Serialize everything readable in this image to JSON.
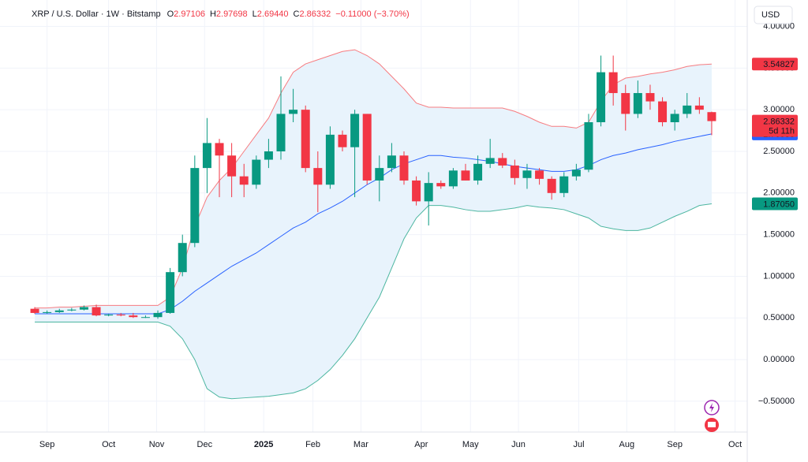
{
  "chart_data": {
    "type": "candlestick",
    "header": {
      "symbol": "XRP / U.S. Dollar · 1W · Bitstamp",
      "ohlc": [
        {
          "key": "O",
          "value": "2.97106"
        },
        {
          "key": "H",
          "value": "2.97698"
        },
        {
          "key": "L",
          "value": "2.69440"
        },
        {
          "key": "C",
          "value": "2.86332"
        }
      ],
      "change": "−0.11000 (−3.70%)"
    },
    "currency": "USD",
    "countdown": "5d 11h",
    "up_color": "#089981",
    "down_color": "#f23645",
    "band_fill": "#e8f3fc",
    "grid": true,
    "ylim": [
      -0.87,
      4.27
    ],
    "yticks": [
      {
        "value": -0.5,
        "label": "−0.50000"
      },
      {
        "value": 0,
        "label": "0.00000"
      },
      {
        "value": 0.5,
        "label": "0.50000"
      },
      {
        "value": 1,
        "label": "1.00000"
      },
      {
        "value": 1.5,
        "label": "1.50000"
      },
      {
        "value": 2,
        "label": "2.00000"
      },
      {
        "value": 2.5,
        "label": "2.50000"
      },
      {
        "value": 3,
        "label": "3.00000"
      },
      {
        "value": 3.5,
        "label": "3.50000"
      },
      {
        "value": 4,
        "label": "4.00000"
      }
    ],
    "xlim": [
      -0.58,
      57.76
    ],
    "xticks": [
      {
        "value": 1,
        "label": "Sep"
      },
      {
        "value": 6,
        "label": "Oct"
      },
      {
        "value": 9.9,
        "label": "Nov"
      },
      {
        "value": 13.8,
        "label": "Dec"
      },
      {
        "value": 18.6,
        "label": "2025"
      },
      {
        "value": 22.6,
        "label": "Feb"
      },
      {
        "value": 26.5,
        "label": "Mar"
      },
      {
        "value": 31.4,
        "label": "Apr"
      },
      {
        "value": 35.4,
        "label": "May"
      },
      {
        "value": 39.3,
        "label": "Jun"
      },
      {
        "value": 44.2,
        "label": "Jul"
      },
      {
        "value": 48.1,
        "label": "Aug"
      },
      {
        "value": 52,
        "label": "Sep"
      },
      {
        "value": 56.9,
        "label": "Oct"
      }
    ],
    "candles": {
      "open": [
        0.61,
        0.56,
        0.57,
        0.59,
        0.6,
        0.63,
        0.53,
        0.54,
        0.53,
        0.51,
        0.51,
        0.56,
        1.05,
        1.4,
        2.3,
        2.6,
        2.45,
        2.2,
        2.1,
        2.4,
        2.5,
        2.95,
        3.0,
        2.3,
        2.1,
        2.7,
        2.55,
        2.95,
        2.15,
        2.3,
        2.45,
        2.15,
        1.9,
        2.12,
        2.08,
        2.27,
        2.15,
        2.35,
        2.42,
        2.33,
        2.18,
        2.27,
        2.17,
        2.0,
        2.2,
        2.28,
        2.85,
        3.45,
        3.2,
        2.95,
        3.2,
        3.1,
        2.85,
        2.95,
        3.05,
        2.97106
      ],
      "high": [
        0.63,
        0.59,
        0.61,
        0.62,
        0.65,
        0.66,
        0.55,
        0.56,
        0.56,
        0.53,
        0.59,
        1.1,
        1.5,
        2.45,
        2.9,
        2.65,
        2.6,
        2.35,
        2.45,
        2.65,
        3.4,
        3.25,
        3.05,
        2.5,
        2.8,
        2.75,
        3.0,
        2.95,
        2.45,
        2.6,
        2.5,
        2.2,
        2.25,
        2.15,
        2.3,
        2.35,
        2.45,
        2.65,
        2.48,
        2.4,
        2.35,
        2.3,
        2.2,
        2.25,
        2.35,
        2.95,
        3.65,
        3.65,
        3.3,
        3.35,
        3.3,
        3.15,
        3.0,
        3.2,
        3.15,
        2.97698
      ],
      "low": [
        0.55,
        0.55,
        0.56,
        0.58,
        0.59,
        0.52,
        0.52,
        0.52,
        0.5,
        0.5,
        0.49,
        0.55,
        1.0,
        1.35,
        2.0,
        1.95,
        1.95,
        1.95,
        2.05,
        2.3,
        2.4,
        2.85,
        2.25,
        1.77,
        2.05,
        2.5,
        1.95,
        2.1,
        1.9,
        2.25,
        2.1,
        1.85,
        1.61,
        2.05,
        2.05,
        2.15,
        2.1,
        2.3,
        2.3,
        2.1,
        2.05,
        2.1,
        1.92,
        1.95,
        2.15,
        2.25,
        2.8,
        3.05,
        2.75,
        2.9,
        3.0,
        2.8,
        2.75,
        2.9,
        2.95,
        2.6944
      ],
      "close": [
        0.56,
        0.57,
        0.59,
        0.6,
        0.63,
        0.53,
        0.54,
        0.53,
        0.51,
        0.51,
        0.56,
        1.05,
        1.4,
        2.3,
        2.6,
        2.45,
        2.2,
        2.1,
        2.4,
        2.5,
        2.95,
        3.0,
        2.3,
        2.1,
        2.7,
        2.55,
        2.95,
        2.15,
        2.3,
        2.45,
        2.15,
        1.9,
        2.12,
        2.08,
        2.27,
        2.15,
        2.35,
        2.42,
        2.33,
        2.18,
        2.27,
        2.17,
        2.0,
        2.2,
        2.28,
        2.85,
        3.45,
        3.2,
        2.95,
        3.2,
        3.1,
        2.85,
        2.95,
        3.05,
        3.0,
        2.86332
      ]
    },
    "bands": {
      "upper": {
        "color": "#f77c80",
        "label_color": "#f23645",
        "values": [
          0.62,
          0.62,
          0.63,
          0.63,
          0.64,
          0.65,
          0.65,
          0.65,
          0.65,
          0.65,
          0.65,
          0.75,
          1.1,
          1.6,
          1.95,
          2.15,
          2.3,
          2.5,
          2.7,
          2.9,
          3.2,
          3.45,
          3.55,
          3.6,
          3.65,
          3.7,
          3.72,
          3.65,
          3.55,
          3.4,
          3.25,
          3.08,
          3.03,
          3.03,
          3.02,
          3.02,
          3.02,
          3.02,
          3.02,
          2.98,
          2.92,
          2.85,
          2.8,
          2.8,
          2.78,
          2.85,
          3.1,
          3.3,
          3.38,
          3.4,
          3.43,
          3.45,
          3.48,
          3.52,
          3.54,
          3.54827
        ]
      },
      "basis": {
        "color": "#2962ff",
        "label_color": "#2962ff",
        "values": [
          0.55,
          0.55,
          0.55,
          0.55,
          0.55,
          0.55,
          0.55,
          0.55,
          0.55,
          0.55,
          0.55,
          0.6,
          0.7,
          0.82,
          0.92,
          1.02,
          1.12,
          1.2,
          1.28,
          1.38,
          1.48,
          1.58,
          1.65,
          1.75,
          1.82,
          1.9,
          2.0,
          2.1,
          2.18,
          2.28,
          2.35,
          2.4,
          2.45,
          2.45,
          2.43,
          2.42,
          2.4,
          2.38,
          2.35,
          2.32,
          2.3,
          2.28,
          2.26,
          2.26,
          2.28,
          2.33,
          2.4,
          2.45,
          2.48,
          2.52,
          2.55,
          2.58,
          2.62,
          2.65,
          2.68,
          2.70938
        ]
      },
      "lower": {
        "color": "#4cb6a0",
        "label_color": "#089981",
        "last_value_label": "1.87050",
        "values": [
          0.45,
          0.45,
          0.45,
          0.45,
          0.45,
          0.45,
          0.45,
          0.45,
          0.45,
          0.45,
          0.45,
          0.4,
          0.25,
          0.0,
          -0.35,
          -0.45,
          -0.47,
          -0.46,
          -0.45,
          -0.44,
          -0.42,
          -0.4,
          -0.35,
          -0.25,
          -0.12,
          0.05,
          0.25,
          0.5,
          0.75,
          1.1,
          1.45,
          1.7,
          1.85,
          1.85,
          1.83,
          1.8,
          1.78,
          1.78,
          1.8,
          1.82,
          1.85,
          1.83,
          1.82,
          1.8,
          1.75,
          1.7,
          1.6,
          1.57,
          1.55,
          1.55,
          1.58,
          1.65,
          1.72,
          1.78,
          1.85,
          1.8705
        ]
      }
    }
  }
}
